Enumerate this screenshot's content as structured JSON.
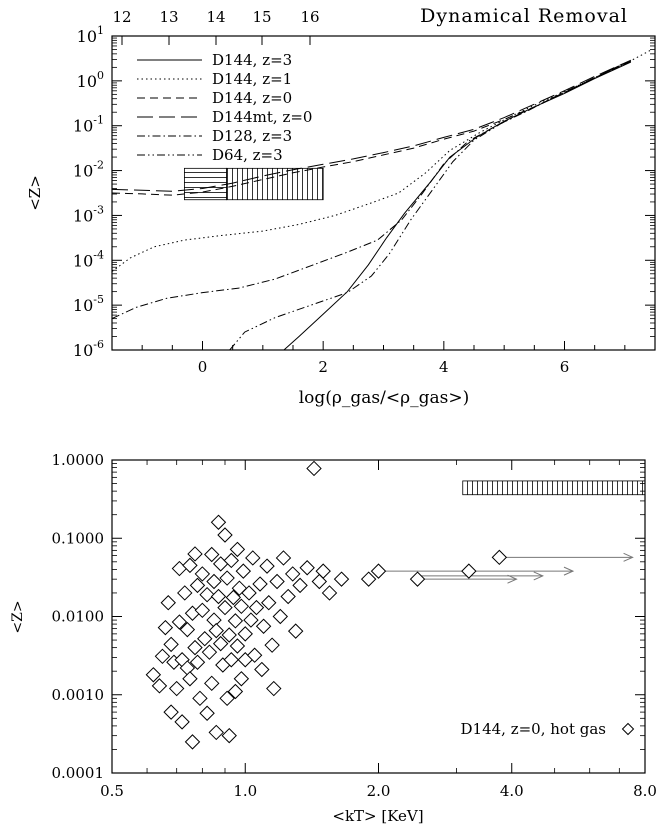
{
  "chart_data": [
    {
      "type": "line",
      "title": "Dynamical Removal",
      "xlabel": "log(ρ_gas/<ρ_gas>)",
      "ylabel": "<Z>",
      "xlim": [
        -1.5,
        7.5
      ],
      "ylim_log10": [
        -6,
        1
      ],
      "yscale": "log",
      "x_ticks": [
        "0",
        "2",
        "4",
        "6"
      ],
      "y_ticks": [
        "10^-6",
        "10^-5",
        "10^-4",
        "10^-3",
        "10^-2",
        "10^-1",
        "10^0",
        "10^1"
      ],
      "top_axis_ticks": [
        "12",
        "13",
        "14",
        "15",
        "16"
      ],
      "legend_position": "top-left",
      "series": [
        {
          "name": "D144, z=3",
          "dash": "solid",
          "points": [
            [
              1.35,
              -6.0
            ],
            [
              1.6,
              -5.7
            ],
            [
              2.0,
              -5.2
            ],
            [
              2.4,
              -4.7
            ],
            [
              2.75,
              -4.1
            ],
            [
              3.05,
              -3.5
            ],
            [
              3.35,
              -2.95
            ],
            [
              3.75,
              -2.3
            ],
            [
              4.1,
              -1.7
            ],
            [
              4.55,
              -1.25
            ],
            [
              5.0,
              -0.9
            ],
            [
              5.5,
              -0.58
            ],
            [
              6.0,
              -0.28
            ],
            [
              6.5,
              0.05
            ],
            [
              7.1,
              0.42
            ]
          ]
        },
        {
          "name": "D144, z=1",
          "dash": "dot",
          "points": [
            [
              -1.5,
              -4.25
            ],
            [
              -1.2,
              -3.95
            ],
            [
              -0.8,
              -3.7
            ],
            [
              -0.3,
              -3.55
            ],
            [
              0.3,
              -3.45
            ],
            [
              1.0,
              -3.35
            ],
            [
              1.6,
              -3.2
            ],
            [
              2.2,
              -3.0
            ],
            [
              2.8,
              -2.72
            ],
            [
              3.25,
              -2.5
            ],
            [
              3.7,
              -2.05
            ],
            [
              4.1,
              -1.55
            ],
            [
              4.6,
              -1.15
            ],
            [
              5.1,
              -0.8
            ],
            [
              5.6,
              -0.48
            ],
            [
              6.1,
              -0.18
            ],
            [
              6.6,
              0.12
            ],
            [
              7.1,
              0.45
            ],
            [
              7.45,
              0.7
            ]
          ]
        },
        {
          "name": "D144, z=0",
          "dash": "dash",
          "points": [
            [
              -1.5,
              -2.5
            ],
            [
              -1.0,
              -2.52
            ],
            [
              -0.5,
              -2.55
            ],
            [
              0.0,
              -2.48
            ],
            [
              0.5,
              -2.35
            ],
            [
              1.0,
              -2.2
            ],
            [
              1.5,
              -2.05
            ],
            [
              2.0,
              -1.92
            ],
            [
              2.5,
              -1.8
            ],
            [
              3.0,
              -1.65
            ],
            [
              3.5,
              -1.5
            ],
            [
              4.0,
              -1.3
            ],
            [
              4.5,
              -1.12
            ],
            [
              5.0,
              -0.86
            ],
            [
              5.5,
              -0.58
            ],
            [
              6.0,
              -0.26
            ],
            [
              6.5,
              0.06
            ],
            [
              7.1,
              0.44
            ]
          ]
        },
        {
          "name": "D144mt, z=0",
          "dash": "longdash",
          "points": [
            [
              -1.5,
              -2.42
            ],
            [
              -1.0,
              -2.44
            ],
            [
              -0.5,
              -2.46
            ],
            [
              0.0,
              -2.4
            ],
            [
              0.5,
              -2.28
            ],
            [
              1.0,
              -2.12
            ],
            [
              1.5,
              -1.98
            ],
            [
              2.0,
              -1.86
            ],
            [
              2.5,
              -1.74
            ],
            [
              3.0,
              -1.6
            ],
            [
              3.5,
              -1.45
            ],
            [
              4.0,
              -1.26
            ],
            [
              4.5,
              -1.08
            ],
            [
              5.0,
              -0.82
            ],
            [
              5.5,
              -0.52
            ],
            [
              6.0,
              -0.22
            ],
            [
              6.5,
              0.1
            ],
            [
              7.1,
              0.46
            ]
          ]
        },
        {
          "name": "D128, z=3",
          "dash": "dashdot",
          "points": [
            [
              -1.5,
              -5.3
            ],
            [
              -1.1,
              -5.05
            ],
            [
              -0.6,
              -4.85
            ],
            [
              0.0,
              -4.72
            ],
            [
              0.6,
              -4.62
            ],
            [
              1.2,
              -4.42
            ],
            [
              1.8,
              -4.12
            ],
            [
              2.4,
              -3.82
            ],
            [
              2.9,
              -3.55
            ],
            [
              3.3,
              -3.1
            ],
            [
              3.65,
              -2.5
            ],
            [
              4.0,
              -1.85
            ],
            [
              4.4,
              -1.35
            ],
            [
              4.9,
              -0.98
            ],
            [
              5.4,
              -0.66
            ],
            [
              5.9,
              -0.32
            ],
            [
              6.4,
              0.0
            ],
            [
              7.0,
              0.4
            ]
          ]
        },
        {
          "name": "D64, z=3",
          "dash": "dashdotdot",
          "points": [
            [
              0.45,
              -6.0
            ],
            [
              0.7,
              -5.6
            ],
            [
              1.2,
              -5.28
            ],
            [
              1.8,
              -5.0
            ],
            [
              2.4,
              -4.72
            ],
            [
              2.8,
              -4.35
            ],
            [
              3.1,
              -3.85
            ],
            [
              3.45,
              -3.1
            ],
            [
              3.8,
              -2.45
            ],
            [
              4.15,
              -1.8
            ],
            [
              4.5,
              -1.32
            ],
            [
              4.95,
              -0.95
            ],
            [
              5.45,
              -0.62
            ],
            [
              5.95,
              -0.28
            ],
            [
              6.45,
              0.04
            ],
            [
              7.05,
              0.42
            ]
          ]
        }
      ],
      "shaded_regions": [
        {
          "x": [
            -0.3,
            0.4
          ],
          "y_log10": [
            -2.65,
            -1.95
          ],
          "hatch": "horizontal"
        },
        {
          "x": [
            0.4,
            2.0
          ],
          "y_log10": [
            -2.65,
            -1.95
          ],
          "hatch": "vertical"
        }
      ]
    },
    {
      "type": "scatter",
      "xlabel": "<kT> [KeV]",
      "ylabel": "<Z>",
      "xscale": "log",
      "yscale": "log",
      "xlim": [
        0.5,
        8.0
      ],
      "ylim": [
        0.0001,
        1.0
      ],
      "x_ticks": [
        "0.5",
        "1.0",
        "2.0",
        "4.0",
        "8.0"
      ],
      "y_ticks": [
        "0.0001",
        "0.0010",
        "0.0100",
        "0.1000",
        "1.0000"
      ],
      "legend_position": "bottom-right",
      "series": [
        {
          "name": "D144, z=0, hot gas",
          "marker": "diamond",
          "points": [
            [
              0.62,
              0.0018
            ],
            [
              0.64,
              0.0013
            ],
            [
              0.65,
              0.0031
            ],
            [
              0.66,
              0.0072
            ],
            [
              0.67,
              0.015
            ],
            [
              0.68,
              0.0044
            ],
            [
              0.68,
              0.0006
            ],
            [
              0.69,
              0.0026
            ],
            [
              0.7,
              0.0012
            ],
            [
              0.71,
              0.041
            ],
            [
              0.71,
              0.0085
            ],
            [
              0.72,
              0.0028
            ],
            [
              0.72,
              0.00045
            ],
            [
              0.73,
              0.02
            ],
            [
              0.74,
              0.0068
            ],
            [
              0.74,
              0.0022
            ],
            [
              0.75,
              0.045
            ],
            [
              0.75,
              0.0016
            ],
            [
              0.76,
              0.011
            ],
            [
              0.76,
              0.00025
            ],
            [
              0.77,
              0.063
            ],
            [
              0.77,
              0.004
            ],
            [
              0.78,
              0.025
            ],
            [
              0.78,
              0.0026
            ],
            [
              0.79,
              0.0009
            ],
            [
              0.8,
              0.012
            ],
            [
              0.8,
              0.035
            ],
            [
              0.81,
              0.0052
            ],
            [
              0.82,
              0.00058
            ],
            [
              0.82,
              0.019
            ],
            [
              0.83,
              0.0035
            ],
            [
              0.84,
              0.062
            ],
            [
              0.84,
              0.0014
            ],
            [
              0.85,
              0.009
            ],
            [
              0.85,
              0.028
            ],
            [
              0.86,
              0.0066
            ],
            [
              0.86,
              0.00033
            ],
            [
              0.87,
              0.16
            ],
            [
              0.87,
              0.018
            ],
            [
              0.88,
              0.0045
            ],
            [
              0.88,
              0.047
            ],
            [
              0.89,
              0.0024
            ],
            [
              0.9,
              0.11
            ],
            [
              0.9,
              0.013
            ],
            [
              0.91,
              0.0009
            ],
            [
              0.91,
              0.031
            ],
            [
              0.92,
              0.0058
            ],
            [
              0.92,
              0.0003
            ],
            [
              0.93,
              0.052
            ],
            [
              0.93,
              0.0028
            ],
            [
              0.94,
              0.0175
            ],
            [
              0.95,
              0.0088
            ],
            [
              0.95,
              0.0011
            ],
            [
              0.96,
              0.072
            ],
            [
              0.96,
              0.0042
            ],
            [
              0.97,
              0.023
            ],
            [
              0.98,
              0.0135
            ],
            [
              0.98,
              0.0016
            ],
            [
              0.99,
              0.038
            ],
            [
              1.0,
              0.006
            ],
            [
              1.0,
              0.0028
            ],
            [
              1.02,
              0.02
            ],
            [
              1.03,
              0.009
            ],
            [
              1.04,
              0.056
            ],
            [
              1.05,
              0.0032
            ],
            [
              1.06,
              0.013
            ],
            [
              1.08,
              0.026
            ],
            [
              1.09,
              0.0021
            ],
            [
              1.1,
              0.0075
            ],
            [
              1.12,
              0.044
            ],
            [
              1.13,
              0.015
            ],
            [
              1.15,
              0.0043
            ],
            [
              1.16,
              0.0012
            ],
            [
              1.18,
              0.028
            ],
            [
              1.2,
              0.01
            ],
            [
              1.22,
              0.056
            ],
            [
              1.25,
              0.018
            ],
            [
              1.28,
              0.035
            ],
            [
              1.3,
              0.0065
            ],
            [
              1.33,
              0.025
            ],
            [
              1.38,
              0.042
            ],
            [
              1.43,
              0.78
            ],
            [
              1.47,
              0.028
            ],
            [
              1.5,
              0.038
            ],
            [
              1.55,
              0.02
            ],
            [
              1.65,
              0.03
            ],
            [
              1.9,
              0.03
            ],
            [
              2.0,
              0.038
            ],
            [
              2.45,
              0.03
            ],
            [
              3.2,
              0.038
            ],
            [
              3.75,
              0.057
            ]
          ]
        }
      ],
      "arrows": [
        {
          "from": [
            2.0,
            0.038
          ],
          "to": [
            3.3,
            0.038
          ]
        },
        {
          "from": [
            2.45,
            0.03
          ],
          "to": [
            4.1,
            0.03
          ]
        },
        {
          "from": [
            2.5,
            0.033
          ],
          "to": [
            4.7,
            0.033
          ]
        },
        {
          "from": [
            3.2,
            0.038
          ],
          "to": [
            5.5,
            0.038
          ]
        },
        {
          "from": [
            3.75,
            0.057
          ],
          "to": [
            7.5,
            0.057
          ]
        }
      ],
      "shaded_regions": [
        {
          "x": [
            3.1,
            8.0
          ],
          "y": [
            0.36,
            0.54
          ],
          "hatch": "vertical"
        }
      ]
    }
  ]
}
